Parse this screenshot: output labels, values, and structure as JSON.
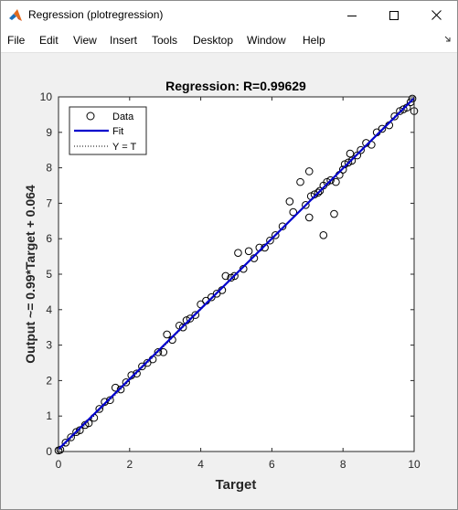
{
  "window": {
    "title": "Regression (plotregression)",
    "icon": "matlab-logo-icon",
    "controls": {
      "minimize": "minimize-icon",
      "maximize": "maximize-icon",
      "close": "close-icon"
    }
  },
  "menubar": {
    "items": [
      "File",
      "Edit",
      "View",
      "Insert",
      "Tools",
      "Desktop",
      "Window",
      "Help"
    ],
    "overflow_icon": "dock-arrow-icon"
  },
  "chart_data": {
    "type": "scatter",
    "title": "Regression: R=0.99629",
    "xlabel": "Target",
    "ylabel": "Output ~= 0.99*Target + 0.064",
    "xlim": [
      0,
      10
    ],
    "ylim": [
      0,
      10
    ],
    "xticks": [
      "0",
      "2",
      "4",
      "6",
      "8",
      "10"
    ],
    "yticks": [
      "0",
      "1",
      "2",
      "3",
      "4",
      "5",
      "6",
      "7",
      "8",
      "9",
      "10"
    ],
    "grid": false,
    "legend": {
      "placement": "top-left",
      "entries": [
        "Data",
        "Fit",
        "Y = T"
      ]
    },
    "series": [
      {
        "name": "Data",
        "marker": "circle",
        "color": "#000000",
        "points": [
          [
            0.0,
            0.03
          ],
          [
            0.05,
            0.05
          ],
          [
            0.2,
            0.25
          ],
          [
            0.35,
            0.4
          ],
          [
            0.5,
            0.55
          ],
          [
            0.6,
            0.6
          ],
          [
            0.75,
            0.75
          ],
          [
            0.85,
            0.8
          ],
          [
            1.0,
            0.95
          ],
          [
            1.15,
            1.2
          ],
          [
            1.3,
            1.4
          ],
          [
            1.45,
            1.45
          ],
          [
            1.6,
            1.8
          ],
          [
            1.75,
            1.75
          ],
          [
            1.9,
            1.95
          ],
          [
            2.05,
            2.15
          ],
          [
            2.2,
            2.2
          ],
          [
            2.35,
            2.4
          ],
          [
            2.5,
            2.5
          ],
          [
            2.65,
            2.6
          ],
          [
            2.8,
            2.8
          ],
          [
            2.95,
            2.8
          ],
          [
            3.05,
            3.3
          ],
          [
            3.2,
            3.15
          ],
          [
            3.4,
            3.55
          ],
          [
            3.5,
            3.5
          ],
          [
            3.6,
            3.7
          ],
          [
            3.7,
            3.75
          ],
          [
            3.85,
            3.85
          ],
          [
            4.0,
            4.15
          ],
          [
            4.15,
            4.25
          ],
          [
            4.3,
            4.35
          ],
          [
            4.45,
            4.45
          ],
          [
            4.6,
            4.55
          ],
          [
            4.7,
            4.95
          ],
          [
            4.85,
            4.9
          ],
          [
            4.95,
            4.95
          ],
          [
            5.05,
            5.6
          ],
          [
            5.2,
            5.15
          ],
          [
            5.35,
            5.65
          ],
          [
            5.5,
            5.45
          ],
          [
            5.65,
            5.75
          ],
          [
            5.8,
            5.75
          ],
          [
            5.95,
            5.95
          ],
          [
            6.1,
            6.1
          ],
          [
            6.3,
            6.35
          ],
          [
            6.5,
            7.05
          ],
          [
            6.6,
            6.75
          ],
          [
            6.8,
            7.6
          ],
          [
            6.95,
            6.95
          ],
          [
            7.05,
            7.9
          ],
          [
            7.1,
            7.2
          ],
          [
            7.05,
            6.6
          ],
          [
            7.2,
            7.25
          ],
          [
            7.3,
            7.3
          ],
          [
            7.35,
            7.35
          ],
          [
            7.45,
            7.5
          ],
          [
            7.45,
            6.1
          ],
          [
            7.55,
            7.6
          ],
          [
            7.65,
            7.65
          ],
          [
            7.75,
            6.7
          ],
          [
            7.8,
            7.6
          ],
          [
            7.9,
            7.8
          ],
          [
            8.0,
            7.95
          ],
          [
            8.05,
            8.1
          ],
          [
            8.15,
            8.15
          ],
          [
            8.25,
            8.2
          ],
          [
            8.2,
            8.4
          ],
          [
            8.4,
            8.35
          ],
          [
            8.5,
            8.5
          ],
          [
            8.65,
            8.7
          ],
          [
            8.8,
            8.65
          ],
          [
            8.95,
            9.0
          ],
          [
            9.1,
            9.1
          ],
          [
            9.3,
            9.2
          ],
          [
            9.45,
            9.45
          ],
          [
            9.6,
            9.6
          ],
          [
            9.7,
            9.65
          ],
          [
            9.8,
            9.7
          ],
          [
            9.9,
            9.85
          ],
          [
            9.95,
            9.95
          ],
          [
            10.0,
            9.6
          ]
        ]
      }
    ],
    "fit": {
      "slope": 0.99,
      "intercept": 0.064,
      "color": "#0000cc"
    },
    "identity": {
      "color": "#000000",
      "style": "dotted"
    }
  }
}
